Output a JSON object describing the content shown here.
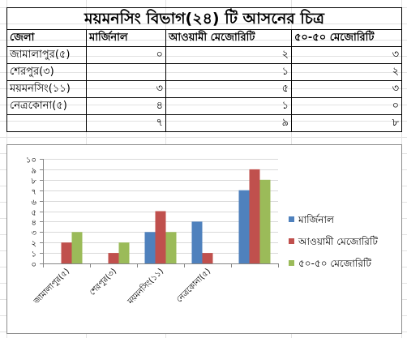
{
  "table": {
    "title": "ময়মনসিং বিভাগ(২৪) টি আসনের চিত্র",
    "headers": [
      "জেলা",
      "মার্জিনাল",
      "আওয়ামী মেজোরিটি",
      "৫০-৫০ মেজোরিটি"
    ],
    "rows": [
      [
        "জামালাপুর(৫)",
        "০",
        "২",
        "৩"
      ],
      [
        "শেরপুর(৩)",
        "",
        "১",
        "২"
      ],
      [
        "ময়মনসিং(১১)",
        "৩",
        "৫",
        "৩"
      ],
      [
        "নেত্রকোনা(৫)",
        "৪",
        "১",
        "০"
      ],
      [
        "",
        "৭",
        "৯",
        "৮"
      ]
    ]
  },
  "chart_data": {
    "type": "bar",
    "categories": [
      "জামালাপুর(৫)",
      "শেরপুর(৩)",
      "ময়মনসিং(১১)",
      "নেত্রকোনা(৫)",
      ""
    ],
    "series": [
      {
        "name": "মার্জিনাল",
        "values": [
          0,
          0,
          3,
          4,
          7
        ],
        "color": "#4f81bd"
      },
      {
        "name": "আওয়ামী মেজোরিটি",
        "values": [
          2,
          1,
          5,
          1,
          9
        ],
        "color": "#c0504d"
      },
      {
        "name": "৫০-৫০ মেজোরিটি",
        "values": [
          3,
          2,
          3,
          0,
          8
        ],
        "color": "#9bbb59"
      }
    ],
    "ylim": [
      0,
      10
    ],
    "yticks": [
      "০",
      "১",
      "২",
      "৩",
      "৪",
      "৫",
      "৬",
      "৭",
      "৮",
      "৯",
      "১০"
    ],
    "grid": true,
    "legend": "right",
    "title": "",
    "xlabel": "",
    "ylabel": ""
  }
}
